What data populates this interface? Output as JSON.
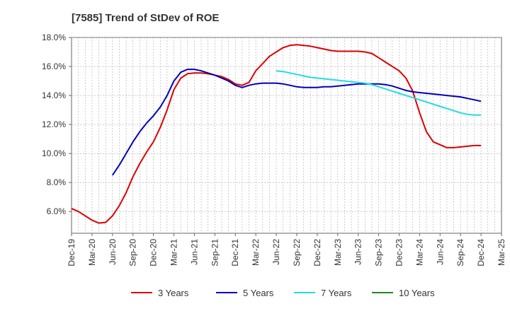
{
  "chart_data": {
    "type": "line",
    "title": "[7585]  Trend of StDev of ROE",
    "xlabel": "",
    "ylabel": "",
    "x_ticks": [
      "Dec-19",
      "Mar-20",
      "Jun-20",
      "Sep-20",
      "Dec-20",
      "Mar-21",
      "Jun-21",
      "Sep-21",
      "Dec-21",
      "Mar-22",
      "Jun-22",
      "Sep-22",
      "Dec-22",
      "Mar-23",
      "Jun-23",
      "Sep-23",
      "Dec-23",
      "Mar-24",
      "Jun-24",
      "Sep-24",
      "Dec-24",
      "Mar-25"
    ],
    "y_ticks": [
      "6.0%",
      "8.0%",
      "10.0%",
      "12.0%",
      "14.0%",
      "16.0%",
      "18.0%"
    ],
    "ylim": [
      4.5,
      18.0
    ],
    "grid": true,
    "legend_position": "bottom",
    "series": [
      {
        "name": "3 Years",
        "color": "#dd0000",
        "x": [
          "Dec-19",
          "Jan-20",
          "Feb-20",
          "Mar-20",
          "Apr-20",
          "May-20",
          "Jun-20",
          "Jul-20",
          "Aug-20",
          "Sep-20",
          "Oct-20",
          "Nov-20",
          "Dec-20",
          "Jan-21",
          "Feb-21",
          "Mar-21",
          "Apr-21",
          "May-21",
          "Jun-21",
          "Jul-21",
          "Aug-21",
          "Sep-21",
          "Oct-21",
          "Nov-21",
          "Dec-21",
          "Jan-22",
          "Feb-22",
          "Mar-22",
          "Apr-22",
          "May-22",
          "Jun-22",
          "Jul-22",
          "Aug-22",
          "Sep-22",
          "Oct-22",
          "Nov-22",
          "Dec-22",
          "Jan-23",
          "Feb-23",
          "Mar-23",
          "Apr-23",
          "May-23",
          "Jun-23",
          "Jul-23",
          "Aug-23",
          "Sep-23",
          "Oct-23",
          "Nov-23",
          "Dec-23",
          "Jan-24",
          "Feb-24",
          "Mar-24",
          "Apr-24",
          "May-24",
          "Jun-24",
          "Jul-24",
          "Aug-24",
          "Sep-24",
          "Oct-24",
          "Nov-24",
          "Dec-24"
        ],
        "values": [
          6.2,
          6.0,
          5.7,
          5.4,
          5.2,
          5.25,
          5.7,
          6.4,
          7.3,
          8.4,
          9.3,
          10.1,
          10.8,
          11.8,
          13.0,
          14.4,
          15.2,
          15.5,
          15.55,
          15.55,
          15.5,
          15.4,
          15.3,
          15.1,
          14.8,
          14.7,
          14.9,
          15.7,
          16.2,
          16.7,
          17.0,
          17.3,
          17.45,
          17.5,
          17.45,
          17.4,
          17.3,
          17.2,
          17.1,
          17.05,
          17.05,
          17.05,
          17.05,
          17.0,
          16.9,
          16.6,
          16.3,
          16.0,
          15.7,
          15.2,
          14.3,
          12.8,
          11.5,
          10.8,
          10.6,
          10.4,
          10.4,
          10.45,
          10.5,
          10.55,
          10.55
        ]
      },
      {
        "name": "5 Years",
        "color": "#0000bb",
        "x": [
          "Jun-20",
          "Jul-20",
          "Aug-20",
          "Sep-20",
          "Oct-20",
          "Nov-20",
          "Dec-20",
          "Jan-21",
          "Feb-21",
          "Mar-21",
          "Apr-21",
          "May-21",
          "Jun-21",
          "Jul-21",
          "Aug-21",
          "Sep-21",
          "Oct-21",
          "Nov-21",
          "Dec-21",
          "Jan-22",
          "Feb-22",
          "Mar-22",
          "Apr-22",
          "May-22",
          "Jun-22",
          "Jul-22",
          "Aug-22",
          "Sep-22",
          "Oct-22",
          "Nov-22",
          "Dec-22",
          "Jan-23",
          "Feb-23",
          "Mar-23",
          "Apr-23",
          "May-23",
          "Jun-23",
          "Jul-23",
          "Aug-23",
          "Sep-23",
          "Oct-23",
          "Nov-23",
          "Dec-23",
          "Jan-24",
          "Feb-24",
          "Mar-24",
          "Apr-24",
          "May-24",
          "Jun-24",
          "Jul-24",
          "Aug-24",
          "Sep-24",
          "Oct-24",
          "Nov-24",
          "Dec-24"
        ],
        "values": [
          8.5,
          9.2,
          10.0,
          10.8,
          11.5,
          12.1,
          12.6,
          13.2,
          14.0,
          15.0,
          15.6,
          15.8,
          15.8,
          15.7,
          15.55,
          15.4,
          15.2,
          15.0,
          14.7,
          14.55,
          14.7,
          14.8,
          14.85,
          14.85,
          14.85,
          14.8,
          14.7,
          14.6,
          14.55,
          14.55,
          14.55,
          14.6,
          14.6,
          14.65,
          14.7,
          14.75,
          14.8,
          14.8,
          14.8,
          14.8,
          14.75,
          14.65,
          14.5,
          14.35,
          14.25,
          14.2,
          14.15,
          14.1,
          14.05,
          14.0,
          13.95,
          13.9,
          13.8,
          13.7,
          13.6
        ]
      },
      {
        "name": "7 Years",
        "color": "#22dddd",
        "x": [
          "Jun-22",
          "Jul-22",
          "Aug-22",
          "Sep-22",
          "Oct-22",
          "Nov-22",
          "Dec-22",
          "Jan-23",
          "Feb-23",
          "Mar-23",
          "Apr-23",
          "May-23",
          "Jun-23",
          "Jul-23",
          "Aug-23",
          "Sep-23",
          "Oct-23",
          "Nov-23",
          "Dec-23",
          "Jan-24",
          "Feb-24",
          "Mar-24",
          "Apr-24",
          "May-24",
          "Jun-24",
          "Jul-24",
          "Aug-24",
          "Sep-24",
          "Oct-24",
          "Nov-24",
          "Dec-24"
        ],
        "values": [
          15.7,
          15.65,
          15.55,
          15.45,
          15.35,
          15.25,
          15.2,
          15.15,
          15.1,
          15.05,
          15.0,
          14.95,
          14.9,
          14.85,
          14.75,
          14.6,
          14.45,
          14.3,
          14.15,
          14.0,
          13.85,
          13.7,
          13.55,
          13.4,
          13.25,
          13.1,
          12.95,
          12.8,
          12.7,
          12.65,
          12.65
        ]
      },
      {
        "name": "10 Years",
        "color": "#228822",
        "x": [],
        "values": []
      }
    ]
  }
}
